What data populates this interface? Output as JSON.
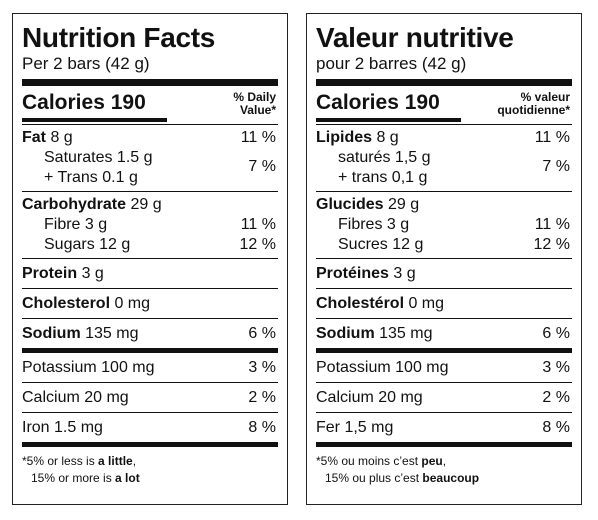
{
  "en": {
    "title": "Nutrition Facts",
    "serving": "Per 2 bars (42 g)",
    "calories": "Calories 190",
    "dv_line1": "% Daily",
    "dv_line2": "Value*",
    "fat_label": "Fat",
    "fat_amount": " 8 g",
    "fat_pct": "11 %",
    "saturates": "Saturates 1.5 g",
    "trans": "+ Trans 0.1 g",
    "sat_trans_pct": "7 %",
    "carb_label": "Carbohydrate",
    "carb_amount": " 29 g",
    "fibre": "Fibre 3 g",
    "fibre_pct": "11 %",
    "sugars": "Sugars 12 g",
    "sugars_pct": "12 %",
    "protein_label": "Protein",
    "protein_amount": " 3 g",
    "chol_label": "Cholesterol",
    "chol_amount": " 0 mg",
    "sodium_label": "Sodium",
    "sodium_amount": " 135 mg",
    "sodium_pct": "6 %",
    "potassium": "Potassium 100 mg",
    "potassium_pct": "3 %",
    "calcium": "Calcium 20 mg",
    "calcium_pct": "2 %",
    "iron": "Iron 1.5 mg",
    "iron_pct": "8 %",
    "foot1_a": "*5% or less is ",
    "foot1_b": "a little",
    "foot1_c": ",",
    "foot2_a": "15% or more is ",
    "foot2_b": "a lot"
  },
  "fr": {
    "title": "Valeur nutritive",
    "serving": "pour 2 barres (42 g)",
    "calories": "Calories 190",
    "dv_line1": "% valeur",
    "dv_line2": "quotidienne*",
    "fat_label": "Lipides",
    "fat_amount": " 8 g",
    "fat_pct": "11 %",
    "saturates": "saturés 1,5 g",
    "trans": "+ trans 0,1 g",
    "sat_trans_pct": "7 %",
    "carb_label": "Glucides",
    "carb_amount": " 29 g",
    "fibre": "Fibres 3 g",
    "fibre_pct": "11 %",
    "sugars": "Sucres 12 g",
    "sugars_pct": "12 %",
    "protein_label": "Protéines",
    "protein_amount": " 3 g",
    "chol_label": "Cholestérol",
    "chol_amount": " 0 mg",
    "sodium_label": "Sodium",
    "sodium_amount": " 135 mg",
    "sodium_pct": "6 %",
    "potassium": "Potassium 100 mg",
    "potassium_pct": "3 %",
    "calcium": "Calcium 20 mg",
    "calcium_pct": "2 %",
    "iron": "Fer 1,5 mg",
    "iron_pct": "8 %",
    "foot1_a": "*5% ou moins c’est ",
    "foot1_b": "peu",
    "foot1_c": ",",
    "foot2_a": "15% ou plus c’est ",
    "foot2_b": "beaucoup"
  }
}
